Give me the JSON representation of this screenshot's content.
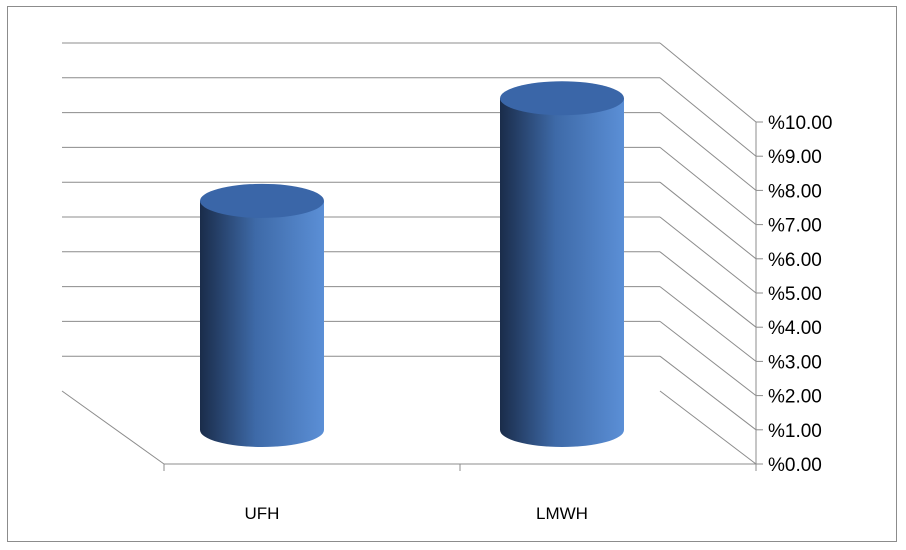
{
  "chart_data": {
    "type": "bar",
    "style": "3d-cylinder",
    "categories": [
      "UFH",
      "LMWH"
    ],
    "series": [
      {
        "values": [
          6.7,
          9.7
        ]
      }
    ],
    "ylim": [
      0,
      10
    ],
    "y_ticks": [
      "%0.00",
      "%1.00",
      "%2.00",
      "%3.00",
      "%4.00",
      "%5.00",
      "%6.00",
      "%7.00",
      "%8.00",
      "%9.00",
      "%10.00"
    ],
    "y_axis_position": "right",
    "title": "",
    "xlabel": "",
    "ylabel": "",
    "grid": true,
    "legend": "none",
    "colors": {
      "bar_light": "#5b8fd6",
      "bar_mid": "#3e6aa8",
      "bar_dark": "#1a2c4a",
      "bar_top": "#3a66a8",
      "grid": "#8c8c8c",
      "frame": "#8c8c8c",
      "text": "#000000"
    }
  }
}
